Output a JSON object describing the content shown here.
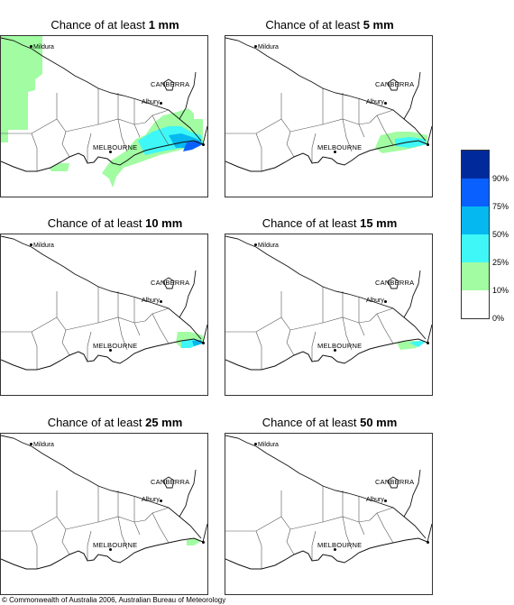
{
  "panels": [
    {
      "prefix": "Chance of at least ",
      "amount": "1 mm"
    },
    {
      "prefix": "Chance of at least ",
      "amount": "5 mm"
    },
    {
      "prefix": "Chance of at least ",
      "amount": "10 mm"
    },
    {
      "prefix": "Chance of at least ",
      "amount": "15 mm"
    },
    {
      "prefix": "Chance of at least ",
      "amount": "25 mm"
    },
    {
      "prefix": "Chance of at least ",
      "amount": "50 mm"
    }
  ],
  "places": {
    "mildura": "Mildura",
    "canberra": "CANBERRA",
    "albury": "Albury",
    "melbourne": "MELBOURNE"
  },
  "legend": {
    "labels": [
      "90%",
      "75%",
      "50%",
      "25%",
      "10%",
      "0%"
    ],
    "colors": [
      "#002a9c",
      "#0a60ff",
      "#05b8ef",
      "#3ff7f7",
      "#a2fca2",
      "#ffffff"
    ]
  },
  "copyright": "© Commonwealth of Australia 2006, Australian Bureau of Meteorology"
}
